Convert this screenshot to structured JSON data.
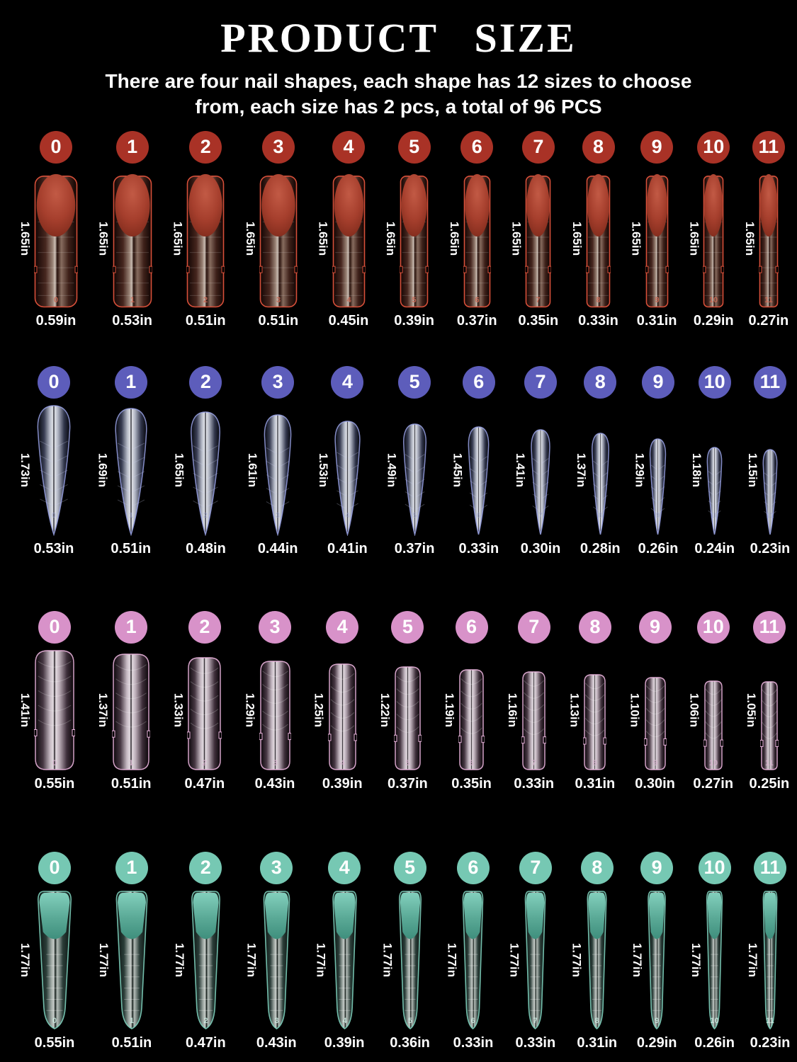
{
  "header": {
    "title": "PRODUCT SIZE",
    "subtitle": "There are four nail shapes, each shape has 12 sizes to choose from, each size has 2 pcs, a total of 96 PCS"
  },
  "colors": {
    "background": "#000000",
    "text": "#ffffff"
  },
  "rows": [
    {
      "shape_id": "round",
      "shape_label": "round-top dual form",
      "badge_color": "#a93226",
      "outline_color": "#d8503a",
      "tip_color": "#a6402e",
      "inner_number_color": "#cf6a55",
      "items": [
        {
          "num": "0",
          "length": "1.65in",
          "width": "0.59in"
        },
        {
          "num": "1",
          "length": "1.65in",
          "width": "0.53in"
        },
        {
          "num": "2",
          "length": "1.65in",
          "width": "0.51in"
        },
        {
          "num": "3",
          "length": "1.65in",
          "width": "0.51in"
        },
        {
          "num": "4",
          "length": "1.65in",
          "width": "0.45in"
        },
        {
          "num": "5",
          "length": "1.65in",
          "width": "0.39in"
        },
        {
          "num": "6",
          "length": "1.65in",
          "width": "0.37in"
        },
        {
          "num": "7",
          "length": "1.65in",
          "width": "0.35in"
        },
        {
          "num": "8",
          "length": "1.65in",
          "width": "0.33in"
        },
        {
          "num": "9",
          "length": "1.65in",
          "width": "0.31in"
        },
        {
          "num": "10",
          "length": "1.65in",
          "width": "0.29in"
        },
        {
          "num": "11",
          "length": "1.65in",
          "width": "0.27in"
        }
      ]
    },
    {
      "shape_id": "stiletto",
      "shape_label": "stiletto",
      "badge_color": "#5d5dbb",
      "outline_color": "#9aa3e8",
      "tip_color": "#3c4158",
      "inner_number_color": "#9aa3d8",
      "items": [
        {
          "num": "0",
          "length": "1.73in",
          "width": "0.53in"
        },
        {
          "num": "1",
          "length": "1.69in",
          "width": "0.51in"
        },
        {
          "num": "2",
          "length": "1.65in",
          "width": "0.48in"
        },
        {
          "num": "3",
          "length": "1.61in",
          "width": "0.44in"
        },
        {
          "num": "4",
          "length": "1.53in",
          "width": "0.41in"
        },
        {
          "num": "5",
          "length": "1.49in",
          "width": "0.37in"
        },
        {
          "num": "6",
          "length": "1.45in",
          "width": "0.33in"
        },
        {
          "num": "7",
          "length": "1.41in",
          "width": "0.30in"
        },
        {
          "num": "8",
          "length": "1.37in",
          "width": "0.28in"
        },
        {
          "num": "9",
          "length": "1.29in",
          "width": "0.26in"
        },
        {
          "num": "10",
          "length": "1.18in",
          "width": "0.24in"
        },
        {
          "num": "11",
          "length": "1.15in",
          "width": "0.23in"
        }
      ]
    },
    {
      "shape_id": "square",
      "shape_label": "square",
      "badge_color": "#d892c9",
      "outline_color": "#eab4dd",
      "tip_color": "#4a3a46",
      "inner_number_color": "#d8b3cf",
      "items": [
        {
          "num": "0",
          "length": "1.41in",
          "width": "0.55in"
        },
        {
          "num": "1",
          "length": "1.37in",
          "width": "0.51in"
        },
        {
          "num": "2",
          "length": "1.33in",
          "width": "0.47in"
        },
        {
          "num": "3",
          "length": "1.29in",
          "width": "0.43in"
        },
        {
          "num": "4",
          "length": "1.25in",
          "width": "0.39in"
        },
        {
          "num": "5",
          "length": "1.22in",
          "width": "0.37in"
        },
        {
          "num": "6",
          "length": "1.19in",
          "width": "0.35in"
        },
        {
          "num": "7",
          "length": "1.16in",
          "width": "0.33in"
        },
        {
          "num": "8",
          "length": "1.13in",
          "width": "0.31in"
        },
        {
          "num": "9",
          "length": "1.10in",
          "width": "0.30in"
        },
        {
          "num": "10",
          "length": "1.06in",
          "width": "0.27in"
        },
        {
          "num": "11",
          "length": "1.05in",
          "width": "0.25in"
        }
      ]
    },
    {
      "shape_id": "coffin",
      "shape_label": "tapered coffin dual form",
      "badge_color": "#76c8b3",
      "outline_color": "#7ed0bc",
      "tip_color": "#5aa996",
      "inner_number_color": "#cfeee5",
      "items": [
        {
          "num": "0",
          "length": "1.77in",
          "width": "0.55in"
        },
        {
          "num": "1",
          "length": "1.77in",
          "width": "0.51in"
        },
        {
          "num": "2",
          "length": "1.77in",
          "width": "0.47in"
        },
        {
          "num": "3",
          "length": "1.77in",
          "width": "0.43in"
        },
        {
          "num": "4",
          "length": "1.77in",
          "width": "0.39in"
        },
        {
          "num": "5",
          "length": "1.77in",
          "width": "0.36in"
        },
        {
          "num": "6",
          "length": "1.77in",
          "width": "0.33in"
        },
        {
          "num": "7",
          "length": "1.77in",
          "width": "0.33in"
        },
        {
          "num": "8",
          "length": "1.77in",
          "width": "0.31in"
        },
        {
          "num": "9",
          "length": "1.77in",
          "width": "0.29in"
        },
        {
          "num": "10",
          "length": "1.77in",
          "width": "0.26in"
        },
        {
          "num": "11",
          "length": "1.77in",
          "width": "0.23in"
        }
      ]
    }
  ]
}
